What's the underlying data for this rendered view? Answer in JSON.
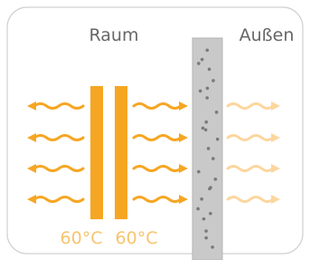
{
  "labels": {
    "inside": "Raum",
    "outside": "Außen"
  },
  "radiators": [
    {
      "label": "60°C"
    },
    {
      "label": "60°C"
    }
  ]
}
